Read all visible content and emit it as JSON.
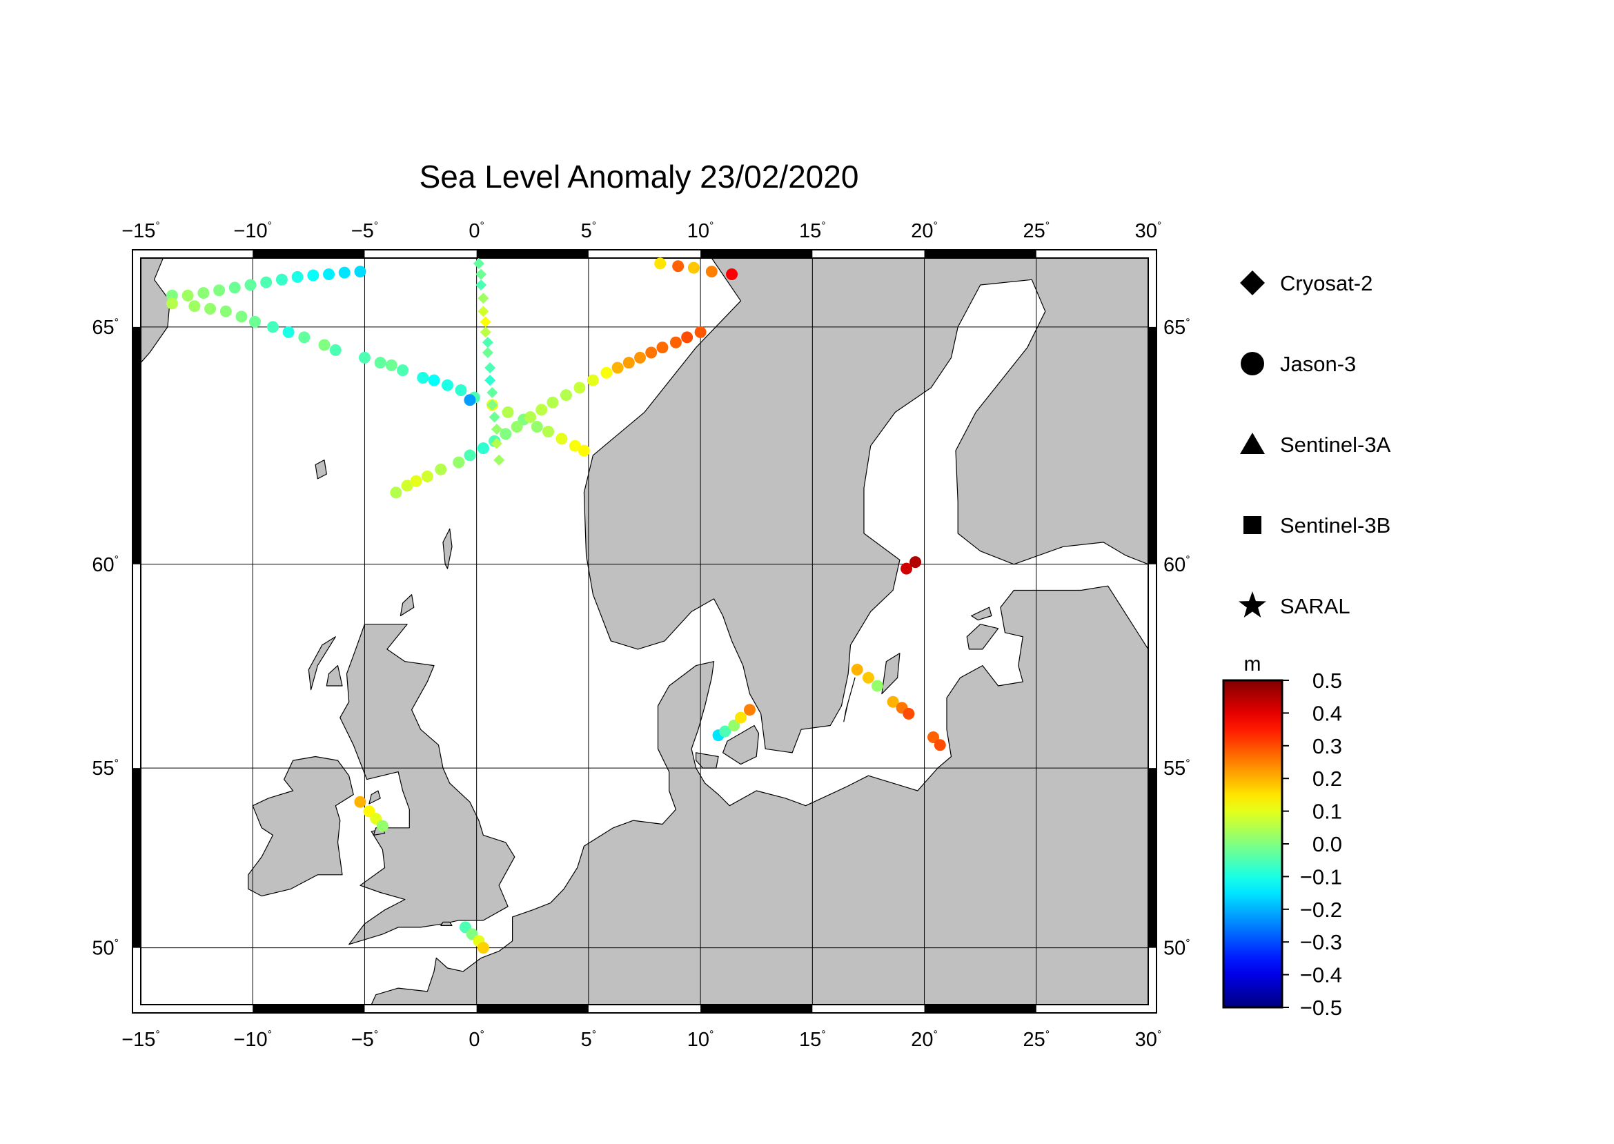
{
  "title": "Sea Level Anomaly 23/02/2020",
  "map": {
    "lon_range": [
      -15,
      30
    ],
    "lat_range": [
      48.3,
      66.3
    ],
    "lon_ticks": [
      "-15",
      "-10",
      "-5",
      "0",
      "5",
      "10",
      "15",
      "20",
      "25",
      "30"
    ],
    "lat_ticks": [
      "50",
      "55",
      "60",
      "65"
    ],
    "degree_symbol": "°",
    "projection": "mercator",
    "land_color": "#c0c0c0",
    "sea_color": "#ffffff"
  },
  "legend": {
    "satellites": [
      {
        "name": "Cryosat-2",
        "symbol": "diamond"
      },
      {
        "name": "Jason-3",
        "symbol": "circle"
      },
      {
        "name": "Sentinel-3A",
        "symbol": "triangle"
      },
      {
        "name": "Sentinel-3B",
        "symbol": "square"
      },
      {
        "name": "SARAL",
        "symbol": "star"
      }
    ]
  },
  "colorbar": {
    "unit": "m",
    "min": -0.5,
    "max": 0.5,
    "ticks": [
      "0.5",
      "0.4",
      "0.3",
      "0.2",
      "0.1",
      "0.0",
      "-0.1",
      "-0.2",
      "-0.3",
      "-0.4",
      "-0.5"
    ],
    "colormap": "jet"
  },
  "chart_data": {
    "type": "scatter",
    "title": "Sea Level Anomaly 23/02/2020",
    "x_label": "",
    "y_label": "",
    "series": [
      {
        "name": "Jason-3",
        "symbol": "circle",
        "points": [
          [
            -13.6,
            65.6,
            0.0
          ],
          [
            -12.9,
            65.6,
            0.03
          ],
          [
            -12.2,
            65.65,
            0.01
          ],
          [
            -11.5,
            65.7,
            0.0
          ],
          [
            -10.8,
            65.75,
            -0.02
          ],
          [
            -10.1,
            65.8,
            -0.03
          ],
          [
            -9.4,
            65.85,
            -0.05
          ],
          [
            -8.7,
            65.9,
            -0.07
          ],
          [
            -8.0,
            65.95,
            -0.1
          ],
          [
            -7.3,
            65.98,
            -0.12
          ],
          [
            -6.6,
            66.0,
            -0.14
          ],
          [
            -5.9,
            66.03,
            -0.15
          ],
          [
            -5.2,
            66.05,
            -0.16
          ],
          [
            -13.6,
            65.45,
            0.05
          ],
          [
            -12.6,
            65.4,
            0.03
          ],
          [
            -11.9,
            65.35,
            0.02
          ],
          [
            -11.2,
            65.3,
            0.01
          ],
          [
            -10.5,
            65.2,
            0.0
          ],
          [
            -9.9,
            65.1,
            -0.02
          ],
          [
            -9.1,
            65.0,
            -0.06
          ],
          [
            -8.4,
            64.9,
            -0.1
          ],
          [
            -7.7,
            64.8,
            -0.03
          ],
          [
            -6.8,
            64.65,
            0.0
          ],
          [
            -6.3,
            64.55,
            -0.05
          ],
          [
            -5.0,
            64.4,
            -0.05
          ],
          [
            -4.3,
            64.3,
            -0.03
          ],
          [
            -3.8,
            64.25,
            -0.02
          ],
          [
            -3.3,
            64.15,
            -0.05
          ],
          [
            -2.4,
            64.0,
            -0.1
          ],
          [
            -1.9,
            63.95,
            -0.12
          ],
          [
            -1.3,
            63.85,
            -0.1
          ],
          [
            -0.7,
            63.75,
            -0.08
          ],
          [
            -0.1,
            63.6,
            -0.05
          ],
          [
            0.7,
            63.45,
            0.1
          ],
          [
            1.4,
            63.3,
            0.05
          ],
          [
            2.1,
            63.15,
            0.0
          ],
          [
            2.7,
            63.0,
            0.02
          ],
          [
            3.2,
            62.9,
            0.05
          ],
          [
            3.8,
            62.75,
            0.1
          ],
          [
            4.4,
            62.6,
            0.12
          ],
          [
            4.8,
            62.5,
            0.13
          ],
          [
            -3.6,
            61.6,
            0.05
          ],
          [
            -3.1,
            61.75,
            0.08
          ],
          [
            -2.7,
            61.85,
            0.1
          ],
          [
            -2.2,
            61.95,
            0.08
          ],
          [
            -1.6,
            62.1,
            0.05
          ],
          [
            -0.8,
            62.25,
            0.02
          ],
          [
            -0.3,
            62.4,
            -0.05
          ],
          [
            0.3,
            62.55,
            -0.08
          ],
          [
            0.8,
            62.7,
            -0.05
          ],
          [
            1.3,
            62.85,
            0.0
          ],
          [
            1.8,
            63.0,
            0.02
          ],
          [
            2.4,
            63.2,
            0.05
          ],
          [
            2.9,
            63.35,
            0.06
          ],
          [
            3.4,
            63.5,
            0.05
          ],
          [
            4.0,
            63.65,
            0.05
          ],
          [
            4.6,
            63.8,
            0.07
          ],
          [
            5.2,
            63.95,
            0.1
          ],
          [
            5.8,
            64.1,
            0.12
          ],
          [
            6.3,
            64.2,
            0.2
          ],
          [
            6.8,
            64.3,
            0.22
          ],
          [
            7.3,
            64.4,
            0.23
          ],
          [
            7.8,
            64.5,
            0.26
          ],
          [
            8.3,
            64.6,
            0.27
          ],
          [
            8.9,
            64.7,
            0.28
          ],
          [
            9.4,
            64.8,
            0.3
          ],
          [
            10.0,
            64.9,
            0.29
          ],
          [
            8.2,
            66.2,
            0.15
          ],
          [
            9.0,
            66.15,
            0.28
          ],
          [
            9.7,
            66.12,
            0.18
          ],
          [
            10.5,
            66.05,
            0.25
          ],
          [
            11.4,
            66.0,
            0.38
          ],
          [
            -0.3,
            63.55,
            -0.22
          ],
          [
            17.0,
            57.5,
            0.2
          ],
          [
            17.5,
            57.3,
            0.18
          ],
          [
            17.9,
            57.1,
            0.02
          ],
          [
            18.6,
            56.7,
            0.2
          ],
          [
            19.0,
            56.55,
            0.26
          ],
          [
            19.3,
            56.4,
            0.3
          ],
          [
            20.4,
            55.8,
            0.28
          ],
          [
            20.7,
            55.6,
            0.3
          ],
          [
            10.8,
            55.85,
            -0.15
          ],
          [
            11.1,
            55.95,
            -0.05
          ],
          [
            11.5,
            56.1,
            0.02
          ],
          [
            11.8,
            56.3,
            0.15
          ],
          [
            12.2,
            56.5,
            0.25
          ],
          [
            -5.2,
            54.1,
            0.2
          ],
          [
            -4.8,
            53.85,
            0.13
          ],
          [
            -4.5,
            53.65,
            0.1
          ],
          [
            -4.2,
            53.45,
            0.02
          ],
          [
            -0.5,
            50.6,
            -0.05
          ],
          [
            -0.2,
            50.4,
            0.0
          ],
          [
            0.1,
            50.2,
            0.1
          ],
          [
            0.3,
            50.0,
            0.17
          ],
          [
            19.2,
            59.9,
            0.42
          ],
          [
            19.6,
            60.05,
            0.45
          ]
        ]
      },
      {
        "name": "Cryosat-2",
        "symbol": "diamond",
        "points": [
          [
            0.1,
            66.2,
            -0.03
          ],
          [
            0.2,
            66.0,
            -0.02
          ],
          [
            0.2,
            65.8,
            -0.05
          ],
          [
            0.3,
            65.55,
            0.03
          ],
          [
            0.3,
            65.3,
            0.08
          ],
          [
            0.4,
            65.1,
            0.12
          ],
          [
            0.4,
            64.9,
            0.06
          ],
          [
            0.5,
            64.7,
            -0.05
          ],
          [
            0.5,
            64.5,
            -0.02
          ],
          [
            0.6,
            64.2,
            -0.05
          ],
          [
            0.6,
            63.95,
            -0.08
          ],
          [
            0.7,
            63.7,
            -0.03
          ],
          [
            0.7,
            63.45,
            0.0
          ],
          [
            0.8,
            63.2,
            -0.02
          ],
          [
            0.9,
            62.95,
            0.02
          ],
          [
            0.9,
            62.65,
            0.05
          ],
          [
            1.0,
            62.3,
            0.03
          ]
        ]
      }
    ]
  }
}
